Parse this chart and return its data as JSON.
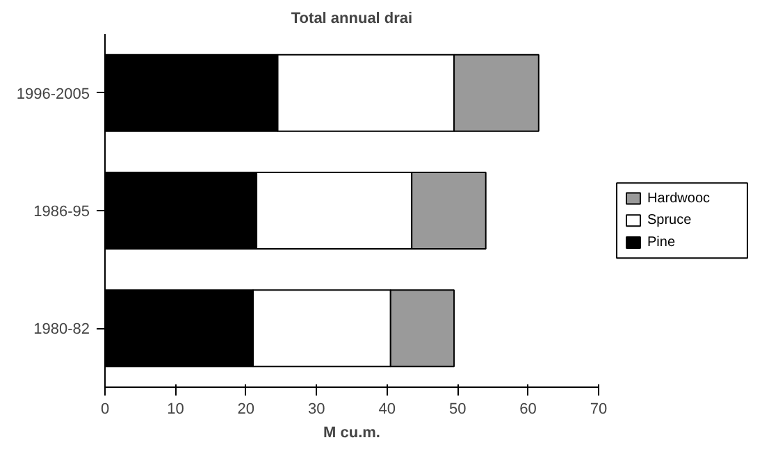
{
  "chart_data": {
    "type": "bar",
    "orientation": "horizontal",
    "stacked": true,
    "title": "Total annual drai",
    "xlabel": "M cu.m.",
    "categories": [
      "1996-2005",
      "1986-95",
      "1980-82"
    ],
    "series": [
      {
        "name": "Pine",
        "color": "#000000",
        "values": [
          24.5,
          21.5,
          21
        ]
      },
      {
        "name": "Spruce",
        "color": "#ffffff",
        "values": [
          25,
          22,
          19.5
        ]
      },
      {
        "name": "Hardwooc",
        "color": "#9a9a9a",
        "values": [
          12,
          10.5,
          9
        ]
      }
    ],
    "xlim": [
      0,
      70
    ],
    "xticks": [
      0,
      10,
      20,
      30,
      40,
      50,
      60,
      70
    ],
    "grid": false,
    "legend": "right"
  }
}
